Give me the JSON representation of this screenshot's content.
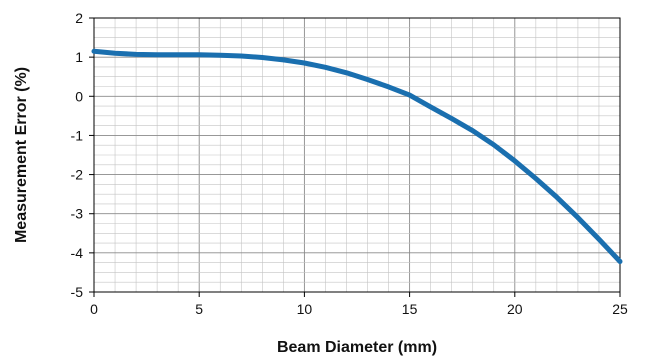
{
  "chart_data": {
    "type": "line",
    "title": "",
    "xlabel": "Beam Diameter (mm)",
    "ylabel": "Measurement Error (%)",
    "xlim": [
      0,
      25
    ],
    "ylim": [
      -5,
      2
    ],
    "x_ticks": [
      0,
      5,
      10,
      15,
      20,
      25
    ],
    "y_ticks": [
      2,
      1,
      0,
      -1,
      -2,
      -3,
      -4,
      -5
    ],
    "grid": true,
    "series": [
      {
        "color": "#1a6faf",
        "x": [
          0,
          1,
          2,
          3,
          4,
          5,
          6,
          7,
          8,
          9,
          10,
          11,
          12,
          13,
          14,
          15,
          16,
          17,
          18,
          19,
          20,
          21,
          22,
          23,
          24,
          25
        ],
        "y": [
          1.15,
          1.1,
          1.07,
          1.06,
          1.06,
          1.06,
          1.05,
          1.03,
          0.99,
          0.93,
          0.85,
          0.74,
          0.6,
          0.43,
          0.24,
          0.03,
          -0.27,
          -0.57,
          -0.88,
          -1.24,
          -1.65,
          -2.1,
          -2.58,
          -3.1,
          -3.65,
          -4.22
        ]
      }
    ]
  }
}
